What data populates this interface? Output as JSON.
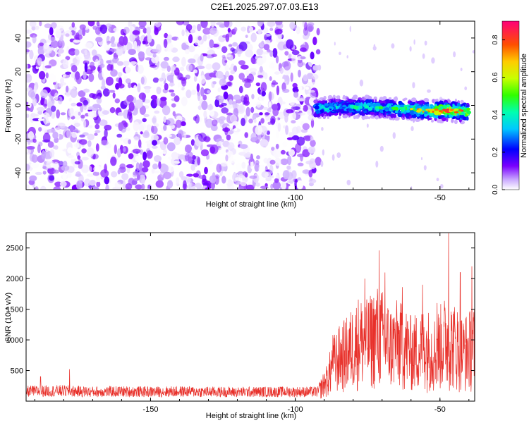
{
  "figure": {
    "title": "C2E1.2025.297.07.03.E13"
  },
  "chart_data": [
    {
      "type": "heatmap",
      "name": "spectrogram",
      "xlabel": "Height of straight line (km)",
      "ylabel": "Frequency (Hz)",
      "xlim": [
        -193,
        -38
      ],
      "ylim": [
        -50,
        50
      ],
      "xticks": [
        -150,
        -100,
        -50
      ],
      "yticks": [
        -40,
        -20,
        0,
        20,
        40
      ],
      "grid": false,
      "noise_region": {
        "x": [
          -193,
          -92
        ],
        "y": [
          -50,
          50
        ],
        "amplitude_range": [
          0.0,
          0.15
        ]
      },
      "signal_band": {
        "x": [
          -93,
          -40
        ],
        "center_frequency": [
          -2,
          -1,
          -1,
          -2,
          -3,
          -3,
          -4
        ],
        "center_x": [
          -93,
          -85,
          -75,
          -65,
          -55,
          -48,
          -40
        ],
        "half_width_hz": 4,
        "peak_amplitude_by_x": [
          0.45,
          0.4,
          0.45,
          0.5,
          0.6,
          0.85,
          0.7
        ]
      },
      "colorbar": {
        "label": "Normalized spectral amplitude",
        "range": [
          0.0,
          0.9
        ],
        "ticks": [
          0.0,
          0.2,
          0.4,
          0.6,
          0.8
        ]
      }
    },
    {
      "type": "line",
      "name": "snr",
      "xlabel": "Height of straight line (km)",
      "ylabel": "SNR (10 * v/v)",
      "xlim": [
        -193,
        -38
      ],
      "ylim": [
        0,
        2750
      ],
      "xticks": [
        -150,
        -100,
        -50
      ],
      "yticks": [
        500,
        1000,
        1500,
        2000,
        2500
      ],
      "grid": false,
      "color": "#e8302a",
      "series": [
        {
          "name": "SNR",
          "x": [
            -193,
            -180,
            -170,
            -160,
            -150,
            -140,
            -130,
            -120,
            -110,
            -100,
            -92,
            -89,
            -87,
            -85,
            -82,
            -80,
            -78,
            -75,
            -72,
            -70,
            -67,
            -65,
            -62,
            -60,
            -57,
            -55,
            -52,
            -50,
            -48,
            -46,
            -44,
            -42,
            -40,
            -38
          ],
          "mean": [
            170,
            175,
            160,
            165,
            160,
            165,
            160,
            155,
            160,
            160,
            160,
            350,
            600,
            700,
            800,
            900,
            1000,
            950,
            1100,
            1050,
            900,
            950,
            900,
            800,
            850,
            900,
            800,
            900,
            1000,
            950,
            900,
            800,
            850,
            900
          ],
          "peaks": [
            {
              "x": -188,
              "y": 400
            },
            {
              "x": -178,
              "y": 520
            },
            {
              "x": -87,
              "y": 1080
            },
            {
              "x": -76,
              "y": 2000
            },
            {
              "x": -71,
              "y": 2460
            },
            {
              "x": -69,
              "y": 2100
            },
            {
              "x": -63,
              "y": 1860
            },
            {
              "x": -56,
              "y": 1900
            },
            {
              "x": -51,
              "y": 1600
            },
            {
              "x": -47,
              "y": 2740
            },
            {
              "x": -43,
              "y": 2100
            },
            {
              "x": -39,
              "y": 2200
            }
          ]
        }
      ]
    }
  ]
}
